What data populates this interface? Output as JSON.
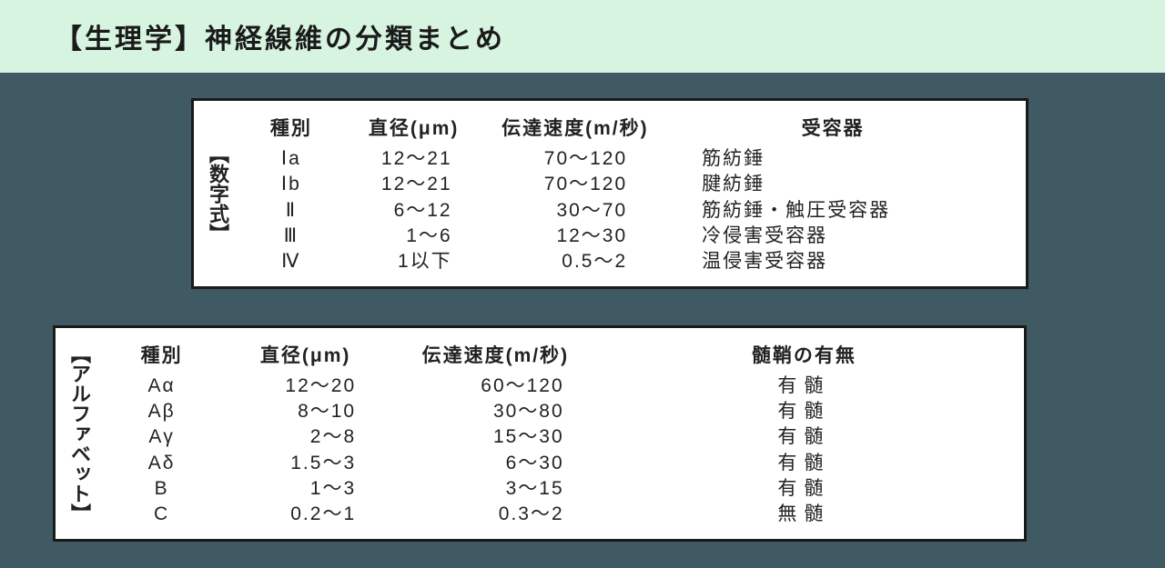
{
  "colors": {
    "header_background": "#d6f4df",
    "header_text": "#1a1a1a",
    "body_background": "#3f5a63",
    "box_background": "#ffffff",
    "box_border": "#1a1a1a",
    "text": "#222222"
  },
  "header": {
    "title": "【生理学】神経線維の分類まとめ"
  },
  "table1": {
    "vertical_label": "【数字式】",
    "columns": [
      "種別",
      "直径(μm)",
      "伝達速度(m/秒)",
      "受容器"
    ],
    "rows": [
      {
        "type": "Ⅰa",
        "diameter": "12～21",
        "speed": "70～120",
        "receptor": "筋紡錘"
      },
      {
        "type": "Ⅰb",
        "diameter": "12～21",
        "speed": "70～120",
        "receptor": "腱紡錘"
      },
      {
        "type": "Ⅱ",
        "diameter": "6～12",
        "speed": "30～70",
        "receptor": "筋紡錘・触圧受容器"
      },
      {
        "type": "Ⅲ",
        "diameter": "1～6",
        "speed": "12～30",
        "receptor": "冷侵害受容器"
      },
      {
        "type": "Ⅳ",
        "diameter": "1以下",
        "speed": "0.5～2",
        "receptor": "温侵害受容器"
      }
    ]
  },
  "table2": {
    "vertical_label": "【アルファベット】",
    "columns": [
      "種別",
      "直径(μm)",
      "伝達速度(m/秒)",
      "髄鞘の有無"
    ],
    "rows": [
      {
        "type": "Aα",
        "diameter": "12～20",
        "speed": "60～120",
        "myelin": "有髄"
      },
      {
        "type": "Aβ",
        "diameter": "8～10",
        "speed": "30～80",
        "myelin": "有髄"
      },
      {
        "type": "Aγ",
        "diameter": "2～8",
        "speed": "15～30",
        "myelin": "有髄"
      },
      {
        "type": "Aδ",
        "diameter": "1.5～3",
        "speed": "6～30",
        "myelin": "有髄"
      },
      {
        "type": "B",
        "diameter": "1～3",
        "speed": "3～15",
        "myelin": "有髄"
      },
      {
        "type": "C",
        "diameter": "0.2～1",
        "speed": "0.3～2",
        "myelin": "無髄"
      }
    ]
  }
}
